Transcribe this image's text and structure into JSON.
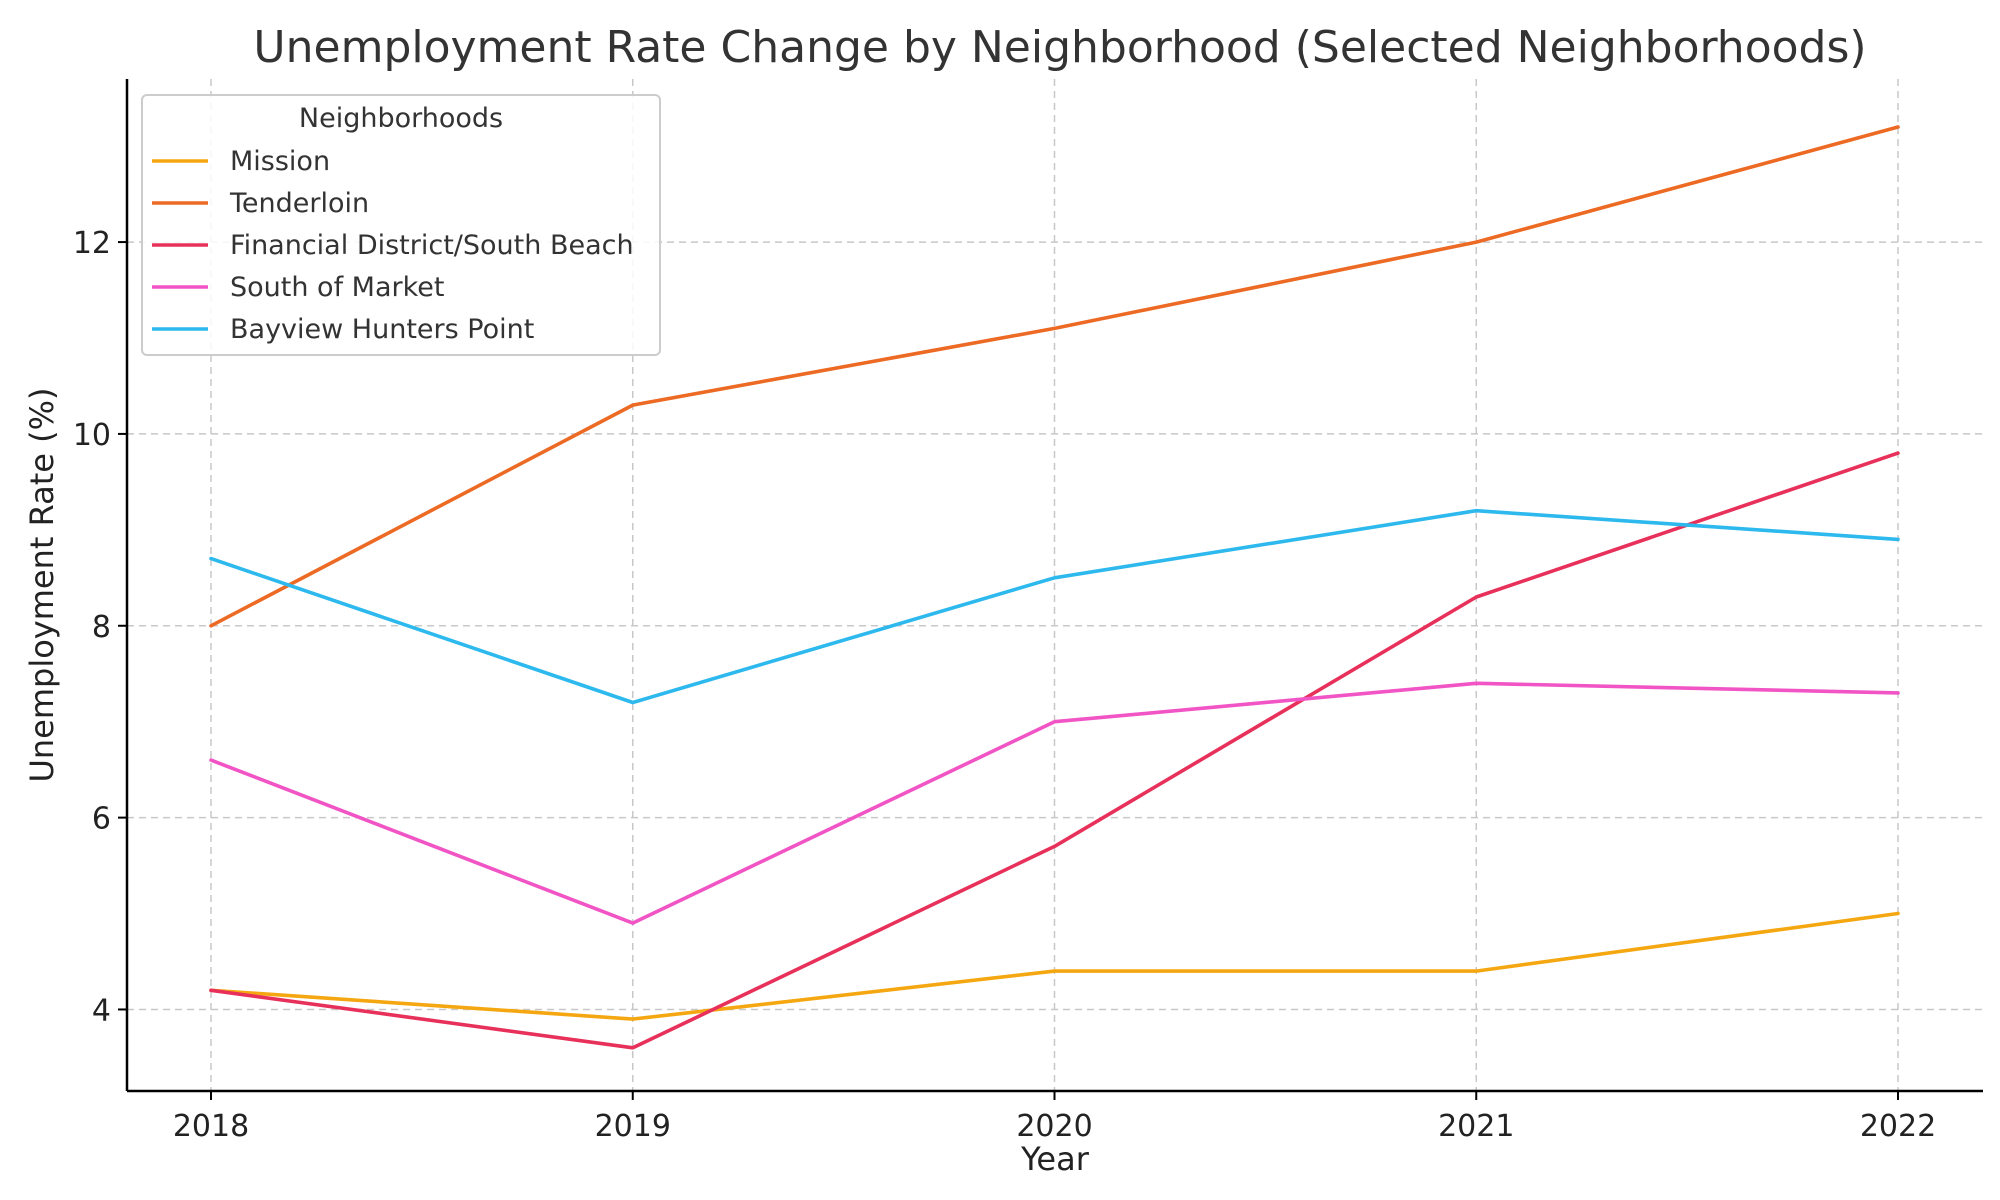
{
  "chart_data": {
    "type": "line",
    "title": "Unemployment Rate Change by Neighborhood (Selected Neighborhoods)",
    "xlabel": "Year",
    "ylabel": "Unemployment Rate (%)",
    "x": [
      "2018",
      "2019",
      "2020",
      "2021",
      "2022"
    ],
    "ylim": [
      3.15,
      13.7
    ],
    "yticks": [
      4,
      6,
      8,
      10,
      12
    ],
    "grid": true,
    "legend": {
      "title": "Neighborhoods",
      "placement": "top-left"
    },
    "series": [
      {
        "name": "Mission",
        "color": "#F5A712",
        "values": [
          4.2,
          3.9,
          4.4,
          4.4,
          5.0
        ]
      },
      {
        "name": "Tenderloin",
        "color": "#EC6A24",
        "values": [
          8.0,
          10.3,
          11.1,
          12.0,
          13.2
        ]
      },
      {
        "name": "Financial District/South Beach",
        "color": "#E8315A",
        "values": [
          4.2,
          3.6,
          5.7,
          8.3,
          9.8
        ]
      },
      {
        "name": "South of Market",
        "color": "#F155C5",
        "values": [
          6.6,
          4.9,
          7.0,
          7.4,
          7.3
        ]
      },
      {
        "name": "Bayview Hunters Point",
        "color": "#2DB9EE",
        "values": [
          8.7,
          7.2,
          8.5,
          9.2,
          8.9
        ]
      }
    ]
  }
}
